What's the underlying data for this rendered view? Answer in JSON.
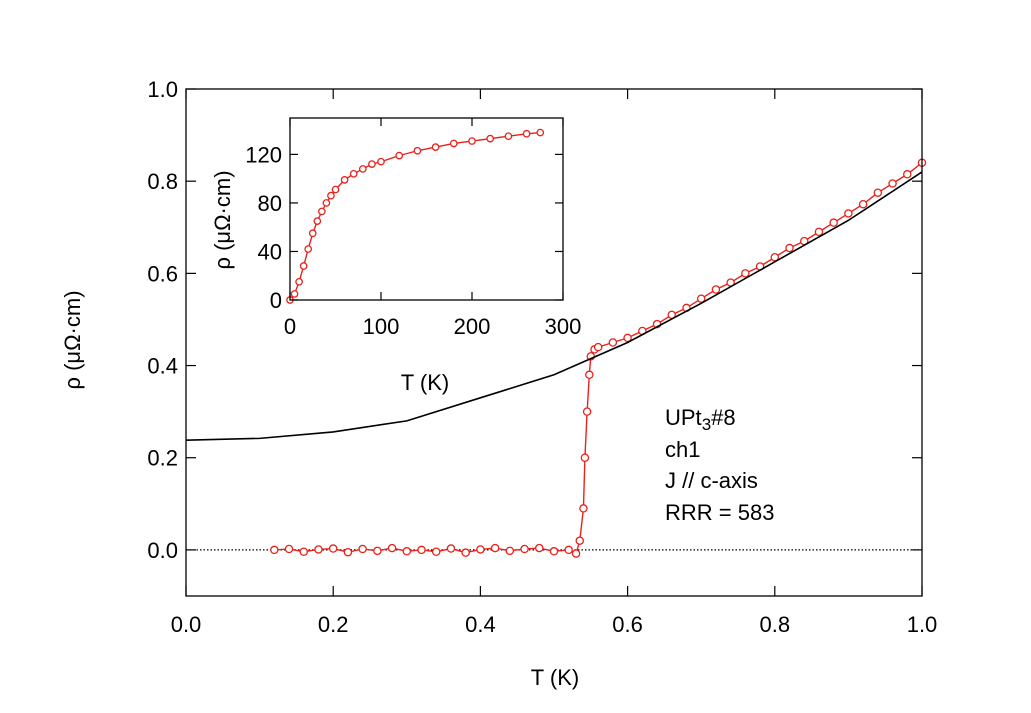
{
  "chart_data": [
    {
      "type": "scatter",
      "name": "main",
      "xlabel": "T (K)",
      "ylabel": "ρ (μΩ·cm)",
      "xlim": [
        0.0,
        1.0
      ],
      "ylim": [
        -0.1,
        1.0
      ],
      "xticks": [
        0.0,
        0.2,
        0.4,
        0.6,
        0.8,
        1.0
      ],
      "xtick_labels": [
        "0.0",
        "0.2",
        "0.4",
        "0.6",
        "0.8",
        "1.0"
      ],
      "yticks": [
        0.0,
        0.2,
        0.4,
        0.6,
        0.8,
        1.0
      ],
      "ytick_labels": [
        "0.0",
        "0.2",
        "0.4",
        "0.6",
        "0.8",
        "1.0"
      ],
      "series": [
        {
          "name": "data",
          "color": "#e8221a",
          "marker": "open-circle",
          "x": [
            0.12,
            0.14,
            0.16,
            0.18,
            0.2,
            0.22,
            0.24,
            0.26,
            0.28,
            0.3,
            0.32,
            0.34,
            0.36,
            0.38,
            0.4,
            0.42,
            0.44,
            0.46,
            0.48,
            0.5,
            0.52,
            0.53,
            0.535,
            0.54,
            0.542,
            0.545,
            0.548,
            0.55,
            0.555,
            0.56,
            0.58,
            0.6,
            0.62,
            0.64,
            0.66,
            0.68,
            0.7,
            0.72,
            0.74,
            0.76,
            0.78,
            0.8,
            0.82,
            0.84,
            0.86,
            0.88,
            0.9,
            0.92,
            0.94,
            0.96,
            0.98,
            1.0
          ],
          "y": [
            0.0,
            0.002,
            -0.004,
            0.001,
            0.003,
            -0.005,
            0.002,
            -0.002,
            0.004,
            -0.003,
            0.0,
            -0.004,
            0.003,
            -0.006,
            0.001,
            0.004,
            -0.002,
            0.002,
            0.004,
            -0.003,
            0.0,
            -0.008,
            0.02,
            0.09,
            0.2,
            0.3,
            0.38,
            0.42,
            0.435,
            0.44,
            0.45,
            0.46,
            0.475,
            0.49,
            0.51,
            0.525,
            0.545,
            0.565,
            0.58,
            0.6,
            0.615,
            0.635,
            0.655,
            0.67,
            0.69,
            0.71,
            0.73,
            0.75,
            0.775,
            0.795,
            0.815,
            0.84
          ]
        },
        {
          "name": "fit",
          "type": "line",
          "color": "#000000",
          "x": [
            0.0,
            0.1,
            0.2,
            0.3,
            0.4,
            0.5,
            0.6,
            0.7,
            0.8,
            0.9,
            1.0
          ],
          "y": [
            0.238,
            0.242,
            0.256,
            0.28,
            0.33,
            0.38,
            0.45,
            0.535,
            0.625,
            0.715,
            0.82
          ]
        }
      ],
      "annotation_lines": [
        "UPt3#8",
        "ch1",
        "J // c-axis",
        "RRR = 583"
      ]
    },
    {
      "type": "scatter",
      "name": "inset",
      "xlabel": "T (K)",
      "ylabel": "ρ (μΩ·cm)",
      "xlim": [
        0,
        300
      ],
      "ylim": [
        0,
        150
      ],
      "xticks": [
        0,
        100,
        200,
        300
      ],
      "xtick_labels": [
        "0",
        "100",
        "200",
        "300"
      ],
      "yticks": [
        0,
        40,
        80,
        120
      ],
      "ytick_labels": [
        "0",
        "40",
        "80",
        "120"
      ],
      "series": [
        {
          "name": "data",
          "color": "#e8221a",
          "marker": "open-circle",
          "x": [
            0,
            5,
            10,
            15,
            20,
            25,
            30,
            35,
            40,
            45,
            50,
            60,
            70,
            80,
            90,
            100,
            120,
            140,
            160,
            180,
            200,
            220,
            240,
            260,
            275
          ],
          "y": [
            0,
            5,
            15,
            28,
            42,
            55,
            65,
            73,
            80,
            86,
            91,
            99,
            104,
            108,
            112,
            114,
            119,
            123,
            126,
            129,
            131,
            133,
            135,
            137,
            138
          ]
        }
      ]
    }
  ],
  "texts": {
    "main_xlabel": "T (K)",
    "main_ylabel": "ρ (μΩ·cm)",
    "inset_xlabel": "T (K)",
    "inset_ylabel": "ρ (μΩ·cm)",
    "annot_sample_prefix": "UPt",
    "annot_sample_sub": "3",
    "annot_sample_suffix": "#8",
    "annot_ch": "ch1",
    "annot_j": "J // c-axis",
    "annot_rrr": "RRR = 583"
  },
  "colors": {
    "data": "#e8221a",
    "fit": "#000000",
    "axis": "#000000",
    "background": "#ffffff"
  }
}
